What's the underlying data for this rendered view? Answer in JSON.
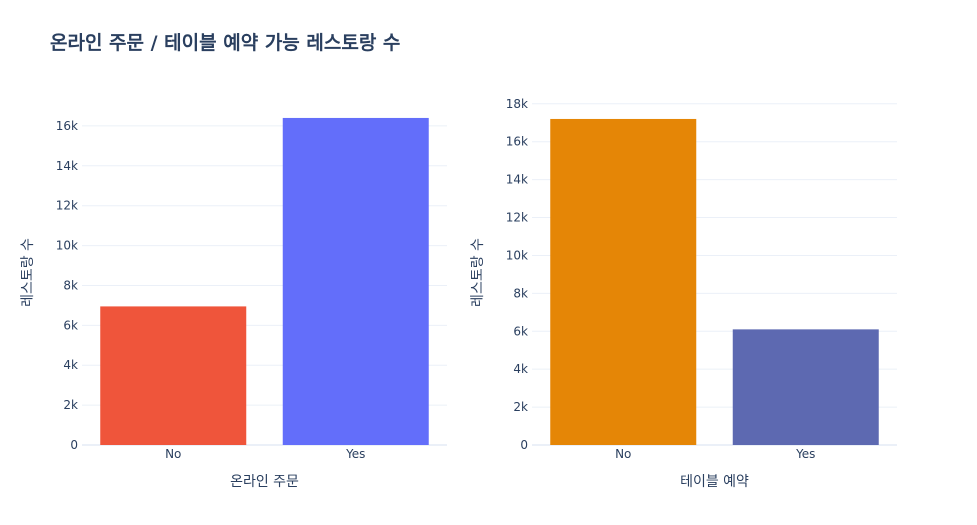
{
  "title": "온라인 주문 / 테이블 예약 가능 레스토랑 수",
  "chart_data": [
    {
      "type": "bar",
      "categories": [
        "No",
        "Yes"
      ],
      "values": [
        6950,
        16400
      ],
      "colors": [
        "#ef553b",
        "#636efa"
      ],
      "xlabel": "온라인 주문",
      "ylabel": "레스토랑 수",
      "ylim": [
        0,
        17300
      ],
      "yticks": [
        0,
        2000,
        4000,
        6000,
        8000,
        10000,
        12000,
        14000,
        16000
      ],
      "ytick_labels": [
        "0",
        "2k",
        "4k",
        "6k",
        "8k",
        "10k",
        "12k",
        "14k",
        "16k"
      ],
      "grid": true
    },
    {
      "type": "bar",
      "categories": [
        "No",
        "Yes"
      ],
      "values": [
        17200,
        6100
      ],
      "colors": [
        "#e58606",
        "#5d69b1"
      ],
      "xlabel": "테이블 예약",
      "ylabel": "레스토랑 수",
      "ylim": [
        0,
        18200
      ],
      "yticks": [
        0,
        2000,
        4000,
        6000,
        8000,
        10000,
        12000,
        14000,
        16000,
        18000
      ],
      "ytick_labels": [
        "0",
        "2k",
        "4k",
        "6k",
        "8k",
        "10k",
        "12k",
        "14k",
        "16k",
        "18k"
      ],
      "grid": true
    }
  ]
}
